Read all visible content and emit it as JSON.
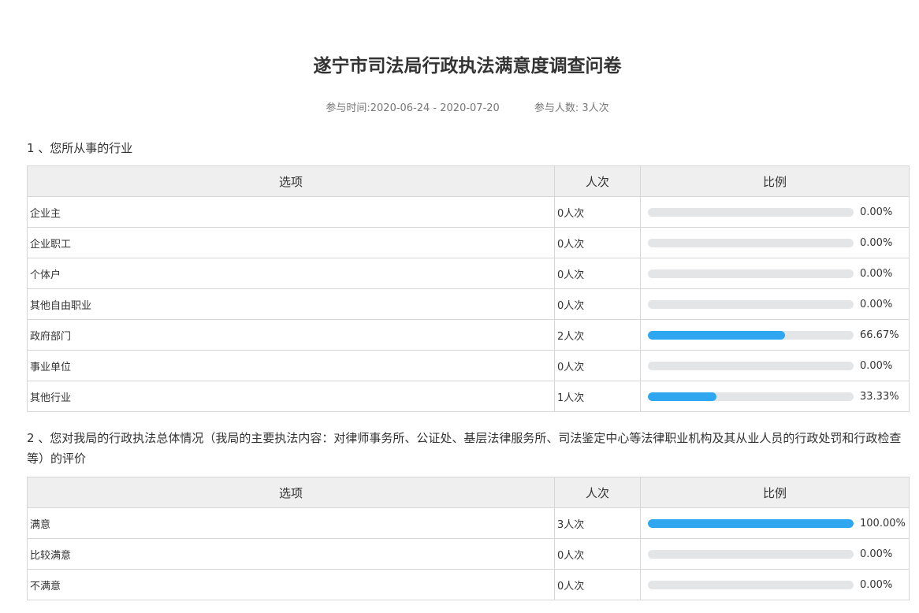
{
  "title": "遂宁市司法局行政执法满意度调查问卷",
  "meta": {
    "time": "参与时间:2020-06-24 - 2020-07-20",
    "count": "参与人数: 3人次"
  },
  "colors": {
    "bar_fill": "#2ea7f0",
    "bar_track": "#e4e5e7"
  },
  "questions": [
    {
      "title": "1 、您所从事的行业",
      "headers": [
        "选项",
        "人次",
        "比例"
      ],
      "rows": [
        {
          "option": "企业主",
          "count": "0人次",
          "percent": 0,
          "label": "0.00%"
        },
        {
          "option": "企业职工",
          "count": "0人次",
          "percent": 0,
          "label": "0.00%"
        },
        {
          "option": "个体户",
          "count": "0人次",
          "percent": 0,
          "label": "0.00%"
        },
        {
          "option": "其他自由职业",
          "count": "0人次",
          "percent": 0,
          "label": "0.00%"
        },
        {
          "option": "政府部门",
          "count": "2人次",
          "percent": 66.67,
          "label": "66.67%"
        },
        {
          "option": "事业单位",
          "count": "0人次",
          "percent": 0,
          "label": "0.00%"
        },
        {
          "option": "其他行业",
          "count": "1人次",
          "percent": 33.33,
          "label": "33.33%"
        }
      ]
    },
    {
      "title": "2 、您对我局的行政执法总体情况（我局的主要执法内容：对律师事务所、公证处、基层法律服务所、司法鉴定中心等法律职业机构及其从业人员的行政处罚和行政检查等）的评价",
      "headers": [
        "选项",
        "人次",
        "比例"
      ],
      "rows": [
        {
          "option": "满意",
          "count": "3人次",
          "percent": 100,
          "label": "100.00%"
        },
        {
          "option": "比较满意",
          "count": "0人次",
          "percent": 0,
          "label": "0.00%"
        },
        {
          "option": "不满意",
          "count": "0人次",
          "percent": 0,
          "label": "0.00%"
        }
      ]
    }
  ]
}
